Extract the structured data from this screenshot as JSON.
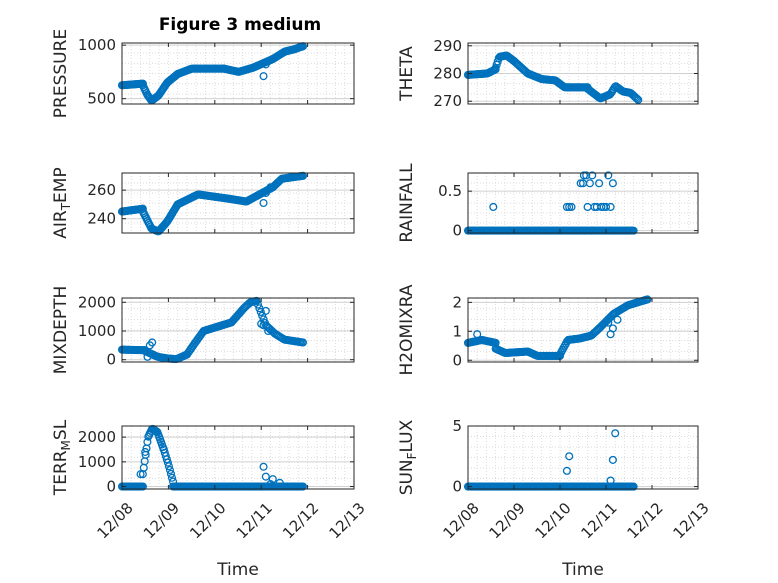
{
  "figure": {
    "title": "Figure 3 medium"
  },
  "chart_data": [
    {
      "type": "scatter",
      "title": "Figure 3 medium",
      "ylabel": "PRESSURE",
      "xlabel": "",
      "ylim": [
        450,
        1020
      ],
      "yticks": [
        500,
        1000
      ],
      "xlim": [
        0,
        5
      ],
      "grid": true,
      "marker_color": "#0072BD",
      "segments": [
        {
          "x0": 0.0,
          "x1": 0.45,
          "n": 22,
          "pts": [
            [
              0.0,
              625
            ],
            [
              1.0,
              640
            ]
          ]
        },
        {
          "x0": 0.45,
          "x1": 1.2,
          "n": 40,
          "pts": [
            [
              0.0,
              625
            ],
            [
              0.12,
              540
            ],
            [
              0.25,
              480
            ],
            [
              0.45,
              530
            ],
            [
              0.7,
              650
            ],
            [
              1.0,
              730
            ]
          ]
        },
        {
          "x0": 1.2,
          "x1": 2.2,
          "n": 45,
          "pts": [
            [
              0.0,
              730
            ],
            [
              0.3,
              780
            ],
            [
              1.0,
              780
            ]
          ]
        },
        {
          "x0": 2.2,
          "x1": 3.25,
          "n": 45,
          "pts": [
            [
              0.0,
              780
            ],
            [
              0.3,
              750
            ],
            [
              0.6,
              790
            ],
            [
              1.0,
              870
            ]
          ]
        },
        {
          "x0": 3.25,
          "x1": 3.9,
          "n": 30,
          "pts": [
            [
              0.0,
              870
            ],
            [
              0.4,
              940
            ],
            [
              0.7,
              960
            ],
            [
              1.0,
              990
            ]
          ]
        }
      ],
      "extra_points": [
        [
          3.05,
          710
        ],
        [
          3.1,
          820
        ],
        [
          3.2,
          860
        ]
      ]
    },
    {
      "type": "scatter",
      "ylabel": "THETA",
      "xlabel": "",
      "ylim": [
        269,
        291
      ],
      "yticks": [
        270,
        280,
        290
      ],
      "xlim": [
        0,
        5
      ],
      "grid": true,
      "marker_color": "#0072BD",
      "segments": [
        {
          "x0": 0.0,
          "x1": 0.6,
          "n": 26,
          "pts": [
            [
              0.0,
              279.5
            ],
            [
              0.7,
              280
            ],
            [
              1.0,
              281.5
            ]
          ]
        },
        {
          "x0": 0.6,
          "x1": 1.0,
          "n": 18,
          "pts": [
            [
              0.0,
              282
            ],
            [
              0.2,
              286
            ],
            [
              0.6,
              286.5
            ],
            [
              1.0,
              284.5
            ]
          ]
        },
        {
          "x0": 1.0,
          "x1": 1.6,
          "n": 24,
          "pts": [
            [
              0.0,
              284.5
            ],
            [
              0.5,
              280
            ],
            [
              1.0,
              278
            ]
          ]
        },
        {
          "x0": 1.6,
          "x1": 2.6,
          "n": 40,
          "pts": [
            [
              0.0,
              278
            ],
            [
              0.3,
              277.5
            ],
            [
              0.5,
              275
            ],
            [
              1.0,
              275
            ]
          ]
        },
        {
          "x0": 2.6,
          "x1": 3.7,
          "n": 44,
          "pts": [
            [
              0.0,
              274.5
            ],
            [
              0.25,
              271
            ],
            [
              0.45,
              272.5
            ],
            [
              0.55,
              275.5
            ],
            [
              0.7,
              273.5
            ],
            [
              0.85,
              273
            ],
            [
              1.0,
              270.5
            ]
          ]
        }
      ],
      "extra_points": []
    },
    {
      "type": "scatter",
      "ylabel": "AIR_TEMP",
      "ylabel_main": "AIR",
      "ylabel_sub": "T",
      "ylabel_rest": "EMP",
      "xlabel": "",
      "ylim": [
        230,
        272
      ],
      "yticks": [
        240,
        260
      ],
      "xlim": [
        0,
        5
      ],
      "grid": true,
      "marker_color": "#0072BD",
      "segments": [
        {
          "x0": 0.0,
          "x1": 0.45,
          "n": 22,
          "pts": [
            [
              0.0,
              245
            ],
            [
              1.0,
              247
            ]
          ]
        },
        {
          "x0": 0.45,
          "x1": 1.2,
          "n": 38,
          "pts": [
            [
              0.0,
              245
            ],
            [
              0.25,
              233
            ],
            [
              0.45,
              231
            ],
            [
              0.7,
              238
            ],
            [
              1.0,
              250
            ]
          ]
        },
        {
          "x0": 1.2,
          "x1": 2.3,
          "n": 45,
          "pts": [
            [
              0.0,
              250
            ],
            [
              0.4,
              257
            ],
            [
              1.0,
              254
            ]
          ]
        },
        {
          "x0": 2.3,
          "x1": 3.25,
          "n": 40,
          "pts": [
            [
              0.0,
              254
            ],
            [
              0.4,
              252
            ],
            [
              1.0,
              262
            ]
          ]
        },
        {
          "x0": 3.25,
          "x1": 3.9,
          "n": 28,
          "pts": [
            [
              0.0,
              262
            ],
            [
              0.3,
              268
            ],
            [
              1.0,
              270
            ]
          ]
        }
      ],
      "extra_points": [
        [
          3.05,
          251
        ],
        [
          3.1,
          258
        ],
        [
          3.2,
          262
        ]
      ]
    },
    {
      "type": "scatter",
      "ylabel": "RAINFALL",
      "xlabel": "",
      "ylim": [
        -0.03,
        0.73
      ],
      "yticks": [
        0,
        0.5
      ],
      "xlim": [
        0,
        5
      ],
      "grid": true,
      "marker_color": "#0072BD",
      "segments": [
        {
          "x0": 0.0,
          "x1": 3.6,
          "n": 160,
          "pts": [
            [
              0.0,
              0
            ],
            [
              1.0,
              0
            ]
          ]
        }
      ],
      "extra_points": [
        [
          0.55,
          0.3
        ],
        [
          2.15,
          0.3
        ],
        [
          2.2,
          0.3
        ],
        [
          2.25,
          0.3
        ],
        [
          2.45,
          0.6
        ],
        [
          2.5,
          0.6
        ],
        [
          2.52,
          0.7
        ],
        [
          2.57,
          0.7
        ],
        [
          2.6,
          0.3
        ],
        [
          2.65,
          0.6
        ],
        [
          2.7,
          0.7
        ],
        [
          2.75,
          0.3
        ],
        [
          2.8,
          0.3
        ],
        [
          2.85,
          0.6
        ],
        [
          2.9,
          0.3
        ],
        [
          2.95,
          0.3
        ],
        [
          3.0,
          0.3
        ],
        [
          3.05,
          0.7
        ],
        [
          3.1,
          0.3
        ],
        [
          3.15,
          0.6
        ],
        [
          2.68,
          0.0
        ],
        [
          2.55,
          0.0
        ]
      ]
    },
    {
      "type": "scatter",
      "ylabel": "MIXDEPTH",
      "xlabel": "",
      "ylim": [
        -80,
        2150
      ],
      "yticks": [
        0,
        1000,
        2000
      ],
      "xlim": [
        0,
        5
      ],
      "grid": true,
      "marker_color": "#0072BD",
      "segments": [
        {
          "x0": 0.0,
          "x1": 0.5,
          "n": 22,
          "pts": [
            [
              0.0,
              350
            ],
            [
              1.0,
              330
            ]
          ]
        },
        {
          "x0": 0.5,
          "x1": 1.4,
          "n": 38,
          "pts": [
            [
              0.0,
              300
            ],
            [
              0.3,
              100
            ],
            [
              0.55,
              40
            ],
            [
              0.75,
              20
            ],
            [
              1.0,
              180
            ]
          ]
        },
        {
          "x0": 1.4,
          "x1": 2.0,
          "n": 26,
          "pts": [
            [
              0.0,
              180
            ],
            [
              0.3,
              600
            ],
            [
              0.6,
              1000
            ],
            [
              1.0,
              1120
            ]
          ]
        },
        {
          "x0": 2.0,
          "x1": 2.9,
          "n": 36,
          "pts": [
            [
              0.0,
              1120
            ],
            [
              0.4,
              1300
            ],
            [
              0.7,
              1800
            ],
            [
              0.85,
              2000
            ],
            [
              1.0,
              2050
            ]
          ]
        },
        {
          "x0": 2.9,
          "x1": 3.9,
          "n": 34,
          "pts": [
            [
              0.0,
              2050
            ],
            [
              0.2,
              1200
            ],
            [
              0.4,
              900
            ],
            [
              0.6,
              700
            ],
            [
              1.0,
              600
            ]
          ]
        }
      ],
      "extra_points": [
        [
          0.6,
          500
        ],
        [
          0.65,
          600
        ],
        [
          0.55,
          100
        ],
        [
          3.05,
          1200
        ],
        [
          3.1,
          1700
        ],
        [
          3.15,
          1000
        ],
        [
          3.0,
          1250
        ]
      ]
    },
    {
      "type": "scatter",
      "ylabel": "H2OMIXRA",
      "xlabel": "",
      "ylim": [
        -0.06,
        2.15
      ],
      "yticks": [
        0,
        1,
        2
      ],
      "xlim": [
        0,
        5
      ],
      "grid": true,
      "marker_color": "#0072BD",
      "segments": [
        {
          "x0": 0.0,
          "x1": 0.6,
          "n": 26,
          "pts": [
            [
              0.0,
              0.6
            ],
            [
              0.5,
              0.7
            ],
            [
              1.0,
              0.6
            ]
          ]
        },
        {
          "x0": 0.6,
          "x1": 2.0,
          "n": 56,
          "pts": [
            [
              0.0,
              0.4
            ],
            [
              0.15,
              0.25
            ],
            [
              0.5,
              0.3
            ],
            [
              0.65,
              0.15
            ],
            [
              1.0,
              0.15
            ]
          ]
        },
        {
          "x0": 2.0,
          "x1": 2.85,
          "n": 34,
          "pts": [
            [
              0.0,
              0.2
            ],
            [
              0.2,
              0.7
            ],
            [
              0.5,
              0.75
            ],
            [
              0.8,
              0.85
            ],
            [
              1.0,
              1.1
            ]
          ]
        },
        {
          "x0": 2.85,
          "x1": 3.9,
          "n": 38,
          "pts": [
            [
              0.0,
              1.1
            ],
            [
              0.3,
              1.6
            ],
            [
              0.6,
              1.9
            ],
            [
              1.0,
              2.1
            ]
          ]
        }
      ],
      "extra_points": [
        [
          0.2,
          0.9
        ],
        [
          3.05,
          1.3
        ],
        [
          3.1,
          0.9
        ],
        [
          3.15,
          1.1
        ],
        [
          3.25,
          1.4
        ]
      ]
    },
    {
      "type": "scatter",
      "ylabel": "TERR_MSL",
      "ylabel_main": "TERR",
      "ylabel_sub": "M",
      "ylabel_rest": "SL",
      "xlabel": "Time",
      "ylim": [
        -100,
        2450
      ],
      "yticks": [
        0,
        1000,
        2000
      ],
      "xlim": [
        0,
        5
      ],
      "xticklabels": [
        "12/08",
        "12/09",
        "12/10",
        "12/11",
        "12/12",
        "12/13"
      ],
      "grid": true,
      "marker_color": "#0072BD",
      "segments": [
        {
          "x0": 0.0,
          "x1": 0.45,
          "n": 20,
          "pts": [
            [
              0.0,
              0
            ],
            [
              1.0,
              0
            ]
          ]
        },
        {
          "x0": 0.45,
          "x1": 0.9,
          "n": 24,
          "pts": [
            [
              0.0,
              500
            ],
            [
              0.25,
              2000
            ],
            [
              0.45,
              2350
            ],
            [
              0.7,
              2200
            ],
            [
              1.0,
              1500
            ]
          ]
        },
        {
          "x0": 0.9,
          "x1": 1.1,
          "n": 10,
          "pts": [
            [
              0.0,
              1500
            ],
            [
              0.5,
              900
            ],
            [
              1.0,
              200
            ]
          ]
        },
        {
          "x0": 1.1,
          "x1": 3.9,
          "n": 120,
          "pts": [
            [
              0.0,
              0
            ],
            [
              1.0,
              0
            ]
          ]
        }
      ],
      "extra_points": [
        [
          3.05,
          800
        ],
        [
          3.1,
          400
        ],
        [
          3.2,
          100
        ],
        [
          3.25,
          300
        ],
        [
          3.4,
          150
        ],
        [
          0.4,
          500
        ],
        [
          0.5,
          1400
        ]
      ]
    },
    {
      "type": "scatter",
      "ylabel": "SUN_FLUX",
      "ylabel_main": "SUN",
      "ylabel_sub": "F",
      "ylabel_rest": "LUX",
      "xlabel": "Time",
      "ylim": [
        -0.2,
        5.0
      ],
      "yticks": [
        0,
        5
      ],
      "xlim": [
        0,
        5
      ],
      "xticklabels": [
        "12/08",
        "12/09",
        "12/10",
        "12/11",
        "12/12",
        "12/13"
      ],
      "grid": true,
      "marker_color": "#0072BD",
      "segments": [
        {
          "x0": 0.0,
          "x1": 3.6,
          "n": 160,
          "pts": [
            [
              0.0,
              0
            ],
            [
              1.0,
              0
            ]
          ]
        }
      ],
      "extra_points": [
        [
          2.15,
          1.3
        ],
        [
          2.2,
          2.5
        ],
        [
          3.1,
          0.5
        ],
        [
          3.15,
          2.2
        ],
        [
          3.2,
          4.4
        ]
      ]
    }
  ]
}
